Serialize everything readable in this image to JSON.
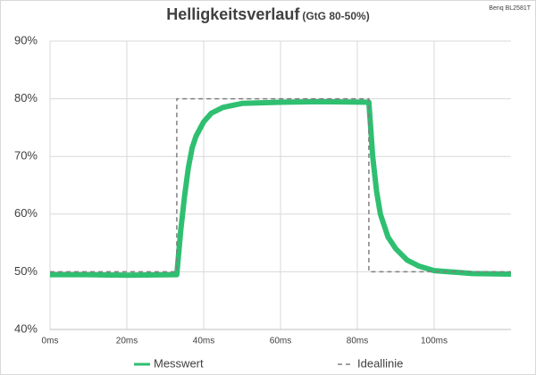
{
  "chart_data": {
    "type": "line",
    "title": "Helligkeitsverlauf",
    "subtitle": "(GtG 80-50%)",
    "annotation": "Benq BL2581T",
    "xlim": [
      0,
      120
    ],
    "ylim": [
      40,
      90
    ],
    "xticks": [
      {
        "value": 0,
        "label": "0ms"
      },
      {
        "value": 20,
        "label": "20ms"
      },
      {
        "value": 40,
        "label": "40ms"
      },
      {
        "value": 60,
        "label": "60ms"
      },
      {
        "value": 80,
        "label": "80ms"
      },
      {
        "value": 100,
        "label": "100ms"
      }
    ],
    "yticks": [
      {
        "value": 40,
        "label": "40%"
      },
      {
        "value": 50,
        "label": "50%"
      },
      {
        "value": 60,
        "label": "60%"
      },
      {
        "value": 70,
        "label": "70%"
      },
      {
        "value": 80,
        "label": "80%"
      },
      {
        "value": 90,
        "label": "90%"
      }
    ],
    "grid": true,
    "series": [
      {
        "name": "Messwert",
        "color": "#2fbf71",
        "dash": false,
        "x": [
          0,
          10,
          20,
          33,
          34,
          35,
          36,
          37,
          38,
          40,
          42,
          45,
          50,
          60,
          70,
          83,
          84,
          85,
          86,
          88,
          90,
          93,
          96,
          100,
          110,
          120
        ],
        "values": [
          49.5,
          49.5,
          49.4,
          49.5,
          57,
          63,
          68,
          71.5,
          73.5,
          76,
          77.5,
          78.5,
          79.2,
          79.4,
          79.5,
          79.4,
          70,
          64,
          60,
          56,
          54,
          52,
          51,
          50.2,
          49.7,
          49.6
        ]
      },
      {
        "name": "Ideallinie",
        "color": "#808080",
        "dash": true,
        "x": [
          0,
          33,
          33,
          83,
          83,
          120
        ],
        "values": [
          50,
          50,
          80,
          80,
          50,
          50
        ]
      }
    ],
    "legend": "bottom"
  }
}
